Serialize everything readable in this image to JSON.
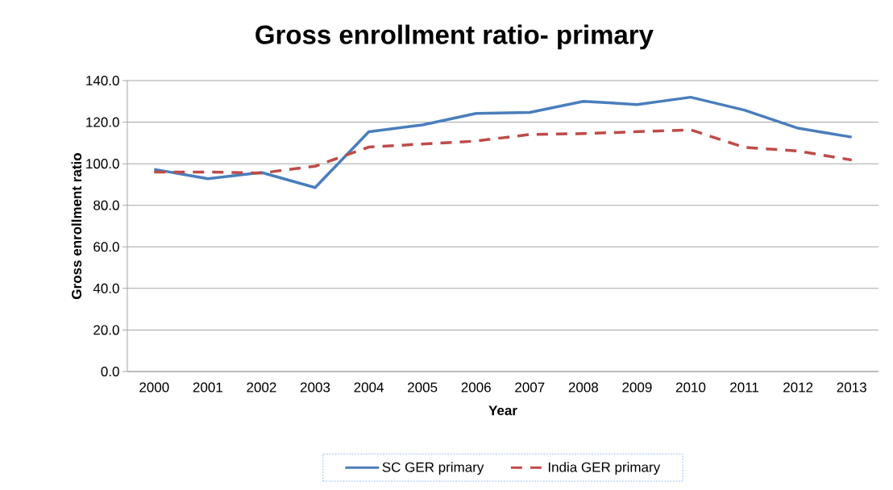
{
  "chart_data": {
    "type": "line",
    "title": "Gross enrollment ratio- primary",
    "xlabel": "Year",
    "ylabel": "Gross enrollment ratio",
    "categories": [
      "2000",
      "2001",
      "2002",
      "2003",
      "2004",
      "2005",
      "2006",
      "2007",
      "2008",
      "2009",
      "2010",
      "2011",
      "2012",
      "2013"
    ],
    "series": [
      {
        "name": "SC GER primary",
        "color": "#4a7ebb",
        "line_style": "solid",
        "values": [
          97.3,
          92.8,
          95.8,
          88.5,
          115.4,
          118.7,
          124.2,
          124.7,
          130.0,
          128.5,
          132.0,
          125.8,
          117.1,
          112.8
        ]
      },
      {
        "name": "India GER primary",
        "color": "#be4b48",
        "line_style": "dashed",
        "values": [
          96.0,
          96.0,
          95.5,
          98.8,
          108.0,
          109.5,
          110.9,
          114.1,
          114.5,
          115.4,
          116.3,
          107.9,
          106.1,
          101.8
        ]
      }
    ],
    "ylim": [
      0,
      140
    ],
    "yticks": [
      {
        "value": 0,
        "label": "0.0"
      },
      {
        "value": 20,
        "label": "20.0"
      },
      {
        "value": 40,
        "label": "40.0"
      },
      {
        "value": 60,
        "label": "60.0"
      },
      {
        "value": 80,
        "label": "80.0"
      },
      {
        "value": 100,
        "label": "100.0"
      },
      {
        "value": 120,
        "label": "120.0"
      },
      {
        "value": 140,
        "label": "140.0"
      }
    ],
    "grid": "y",
    "legend": "bottom"
  }
}
